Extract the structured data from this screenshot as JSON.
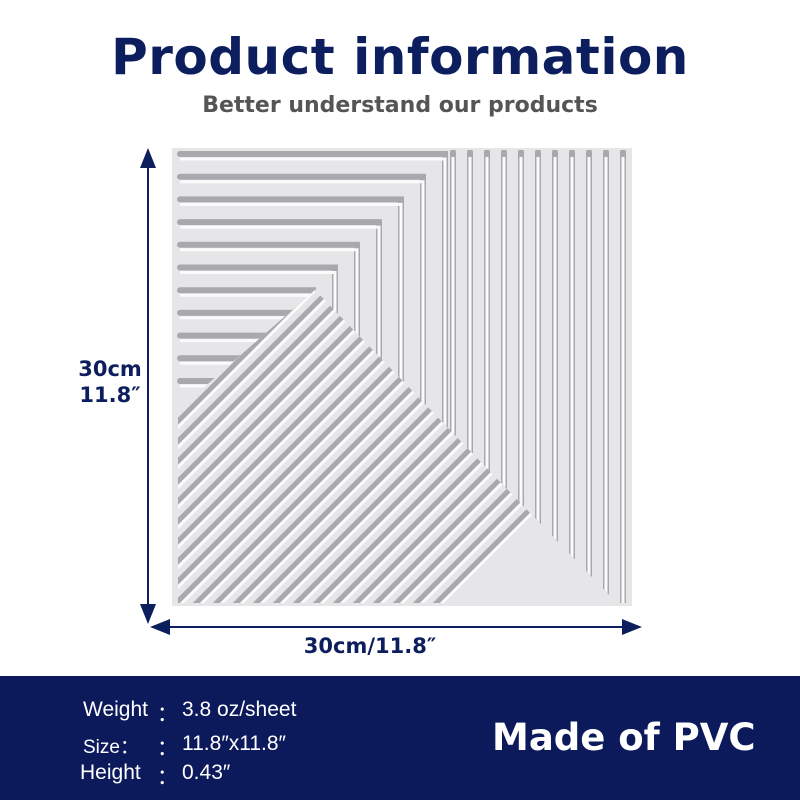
{
  "header": {
    "title": "Product information",
    "subtitle": "Better understand our products"
  },
  "dimensions": {
    "height_cm": "30cm",
    "height_in": "11.8″",
    "width": "30cm/11.8″"
  },
  "specs": [
    {
      "label": "Weight",
      "sep": "：",
      "value": "3.8 oz/sheet"
    },
    {
      "label": "Size：",
      "sep": "：",
      "value": "11.8″x11.8″"
    },
    {
      "label": "Height",
      "sep": "：",
      "value": "0.43″"
    }
  ],
  "material": "Made of PVC",
  "colors": {
    "navy": "#0c1a5c",
    "panel": "#e9e9ea"
  }
}
